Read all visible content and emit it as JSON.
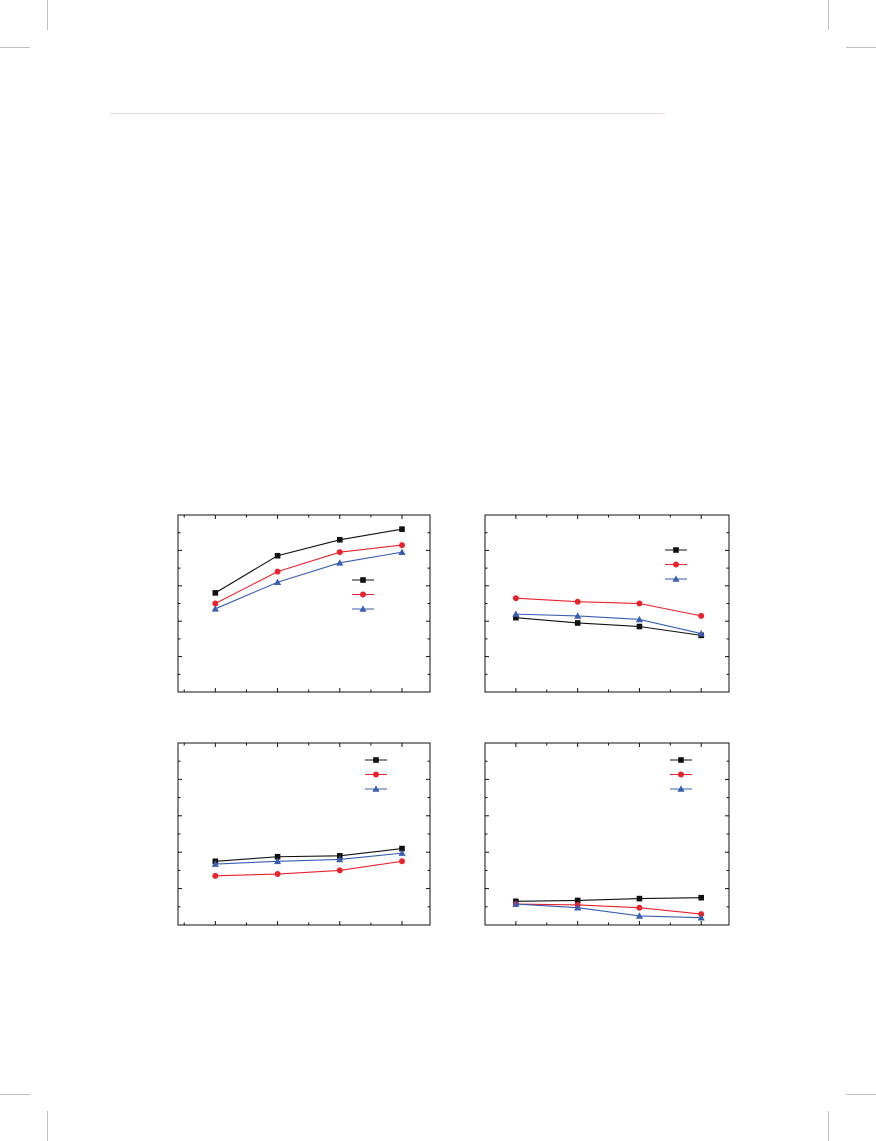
{
  "colors": {
    "series1": "#111111",
    "series2": "#e8232e",
    "series3": "#3a5fb0",
    "axis": "#111111",
    "header_rule": "#f4d9dc"
  },
  "chart_data": [
    {
      "type": "line",
      "panel": "top-left",
      "xlabel": "",
      "ylabel": "",
      "title": "",
      "x": [
        1,
        2,
        3,
        4
      ],
      "xlim": [
        0.4,
        4.45
      ],
      "ylim": [
        0,
        10
      ],
      "legend_position": "right",
      "series": [
        {
          "marker": "square",
          "color": "#111111",
          "values": [
            5.6,
            7.7,
            8.6,
            9.2
          ]
        },
        {
          "marker": "circle",
          "color": "#e8232e",
          "values": [
            5.0,
            6.8,
            7.9,
            8.3
          ]
        },
        {
          "marker": "triangle",
          "color": "#3a5fb0",
          "values": [
            4.7,
            6.2,
            7.3,
            7.9
          ]
        }
      ]
    },
    {
      "type": "line",
      "panel": "top-right",
      "xlabel": "",
      "ylabel": "",
      "title": "",
      "x": [
        1,
        2,
        3,
        4
      ],
      "xlim": [
        0.5,
        4.45
      ],
      "ylim": [
        0,
        10
      ],
      "legend_position": "top-right",
      "series": [
        {
          "marker": "square",
          "color": "#111111",
          "values": [
            4.2,
            3.9,
            3.7,
            3.2
          ]
        },
        {
          "marker": "circle",
          "color": "#e8232e",
          "values": [
            5.3,
            5.1,
            5.0,
            4.3
          ]
        },
        {
          "marker": "triangle",
          "color": "#3a5fb0",
          "values": [
            4.4,
            4.3,
            4.1,
            3.3
          ]
        }
      ]
    },
    {
      "type": "line",
      "panel": "bottom-left",
      "xlabel": "",
      "ylabel": "",
      "title": "",
      "x": [
        1,
        2,
        3,
        4
      ],
      "xlim": [
        0.4,
        4.45
      ],
      "ylim": [
        0,
        10
      ],
      "legend_position": "top-right",
      "series": [
        {
          "marker": "square",
          "color": "#111111",
          "values": [
            3.5,
            3.75,
            3.8,
            4.2
          ]
        },
        {
          "marker": "circle",
          "color": "#e8232e",
          "values": [
            2.7,
            2.8,
            3.0,
            3.5
          ]
        },
        {
          "marker": "triangle",
          "color": "#3a5fb0",
          "values": [
            3.35,
            3.5,
            3.6,
            3.95
          ]
        }
      ]
    },
    {
      "type": "line",
      "panel": "bottom-right",
      "xlabel": "",
      "ylabel": "",
      "title": "",
      "x": [
        1,
        2,
        3,
        4
      ],
      "xlim": [
        0.5,
        4.45
      ],
      "ylim": [
        0,
        10
      ],
      "legend_position": "top-right",
      "series": [
        {
          "marker": "square",
          "color": "#111111",
          "values": [
            1.3,
            1.35,
            1.45,
            1.5
          ]
        },
        {
          "marker": "circle",
          "color": "#e8232e",
          "values": [
            1.15,
            1.1,
            0.95,
            0.6
          ]
        },
        {
          "marker": "triangle",
          "color": "#3a5fb0",
          "values": [
            1.15,
            0.95,
            0.5,
            0.4
          ]
        }
      ]
    }
  ]
}
